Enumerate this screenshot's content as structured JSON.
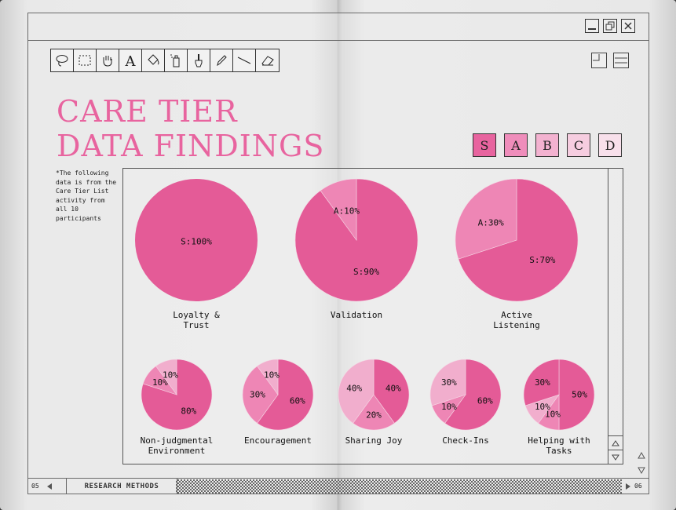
{
  "title": {
    "line1": "CARE TIER",
    "line2": "DATA FINDINGS"
  },
  "tiers": [
    {
      "label": "S",
      "color": "#e8649f"
    },
    {
      "label": "A",
      "color": "#ef8dbb"
    },
    {
      "label": "B",
      "color": "#f3b2d0"
    },
    {
      "label": "C",
      "color": "#f6cde0"
    },
    {
      "label": "D",
      "color": "#f8e0eb"
    }
  ],
  "note": "*The following data is from the Care Tier List activity from all 10 participants",
  "footer": {
    "left_page": "05",
    "tab_label": "RESEARCH METHODS",
    "right_page": "06"
  },
  "tools": [
    "lasso-icon",
    "marquee-select-icon",
    "hand-icon",
    "text-icon",
    "paint-bucket-icon",
    "spray-can-icon",
    "brush-icon",
    "pencil-icon",
    "line-icon",
    "eraser-icon"
  ],
  "colors": {
    "S": "#e45b97",
    "A": "#ee86b5",
    "B": "#f1aecd",
    "accent": "#e8649f"
  },
  "chart_data": [
    {
      "type": "pie",
      "title": "Loyalty & Trust",
      "slices": [
        {
          "label": "S",
          "value": 100
        }
      ]
    },
    {
      "type": "pie",
      "title": "Validation",
      "slices": [
        {
          "label": "S",
          "value": 90
        },
        {
          "label": "A",
          "value": 10
        }
      ]
    },
    {
      "type": "pie",
      "title": "Active Listening",
      "slices": [
        {
          "label": "S",
          "value": 70
        },
        {
          "label": "A",
          "value": 30
        }
      ]
    },
    {
      "type": "pie",
      "title": "Non-judgmental Environment",
      "slices": [
        {
          "label": "S",
          "value": 80
        },
        {
          "label": "A",
          "value": 10
        },
        {
          "label": "B",
          "value": 10
        }
      ]
    },
    {
      "type": "pie",
      "title": "Encouragement",
      "slices": [
        {
          "label": "S",
          "value": 60
        },
        {
          "label": "A",
          "value": 30
        },
        {
          "label": "B",
          "value": 10
        }
      ]
    },
    {
      "type": "pie",
      "title": "Sharing Joy",
      "slices": [
        {
          "label": "S",
          "value": 40
        },
        {
          "label": "A",
          "value": 20
        },
        {
          "label": "B",
          "value": 40
        }
      ]
    },
    {
      "type": "pie",
      "title": "Check-Ins",
      "slices": [
        {
          "label": "S",
          "value": 60
        },
        {
          "label": "A",
          "value": 10
        },
        {
          "label": "B",
          "value": 30
        }
      ]
    },
    {
      "type": "pie",
      "title": "Helping with Tasks",
      "slices": [
        {
          "label": "S",
          "value": 50
        },
        {
          "label": "A",
          "value": 10
        },
        {
          "label": "B",
          "value": 10
        },
        {
          "label": "C",
          "value": 30
        }
      ]
    }
  ]
}
